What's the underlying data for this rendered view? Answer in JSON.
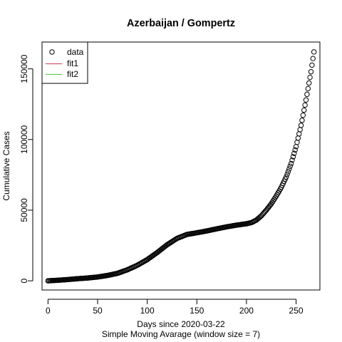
{
  "chart_data": {
    "type": "scatter",
    "title": "Azerbaijan / Gompertz",
    "xlabel": "Days since 2020-03-22",
    "xlabel2": "Simple Moving Avarage (window size = 7)",
    "ylabel": "Cumulative Cases",
    "xlim": [
      -6,
      274
    ],
    "ylim": [
      -6500,
      169000
    ],
    "xticks": [
      0,
      50,
      100,
      150,
      200,
      250
    ],
    "yticks": [
      0,
      50000,
      100000,
      150000
    ],
    "grid": false,
    "legend_position": "top-left",
    "legend": [
      {
        "label": "data",
        "symbol": "circle",
        "color": "#000000"
      },
      {
        "label": "fit1",
        "symbol": "line",
        "color": "#DF536B"
      },
      {
        "label": "fit2",
        "symbol": "line",
        "color": "#61D04F"
      }
    ],
    "series": [
      {
        "name": "data",
        "marker": "open-circle",
        "color": "#000000",
        "points": [
          [
            0,
            0
          ],
          [
            10,
            400
          ],
          [
            20,
            900
          ],
          [
            30,
            1500
          ],
          [
            40,
            2000
          ],
          [
            50,
            2700
          ],
          [
            60,
            3800
          ],
          [
            70,
            5300
          ],
          [
            80,
            7800
          ],
          [
            90,
            11000
          ],
          [
            100,
            15000
          ],
          [
            110,
            20000
          ],
          [
            120,
            25500
          ],
          [
            130,
            30000
          ],
          [
            140,
            32800
          ],
          [
            150,
            34000
          ],
          [
            160,
            35300
          ],
          [
            170,
            36800
          ],
          [
            180,
            38200
          ],
          [
            190,
            39400
          ],
          [
            200,
            40400
          ],
          [
            205,
            41200
          ],
          [
            210,
            43000
          ],
          [
            215,
            46000
          ],
          [
            220,
            50000
          ],
          [
            225,
            54500
          ],
          [
            230,
            60000
          ],
          [
            235,
            66000
          ],
          [
            240,
            73500
          ],
          [
            245,
            83000
          ],
          [
            250,
            95000
          ],
          [
            255,
            110000
          ],
          [
            260,
            128000
          ],
          [
            265,
            148000
          ],
          [
            268,
            162000
          ]
        ]
      }
    ]
  }
}
